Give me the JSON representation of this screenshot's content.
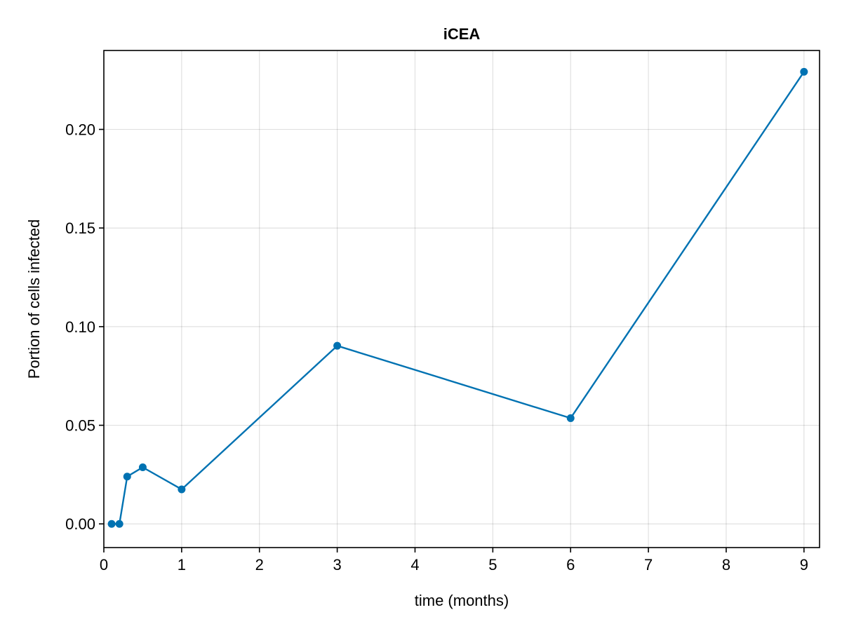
{
  "chart_data": {
    "type": "line",
    "title": "iCEA",
    "xlabel": "time (months)",
    "ylabel": "Portion of cells infected",
    "xlim": [
      0,
      9.2
    ],
    "ylim": [
      -0.012,
      0.24
    ],
    "xticks": [
      0,
      1,
      2,
      3,
      4,
      5,
      6,
      7,
      8,
      9
    ],
    "xtick_labels": [
      "0",
      "1",
      "2",
      "3",
      "4",
      "5",
      "6",
      "7",
      "8",
      "9"
    ],
    "yticks": [
      0.0,
      0.05,
      0.1,
      0.15,
      0.2
    ],
    "ytick_labels": [
      "0.00",
      "0.05",
      "0.10",
      "0.15",
      "0.20"
    ],
    "grid": true,
    "legend": "none",
    "series": [
      {
        "color": "#0072b2",
        "marker": "circle",
        "x": [
          0.1,
          0.2,
          0.3,
          0.5,
          1,
          3,
          6,
          9
        ],
        "y": [
          0.0,
          0.0,
          0.024,
          0.0287,
          0.0175,
          0.0903,
          0.0536,
          0.2292
        ]
      }
    ]
  }
}
